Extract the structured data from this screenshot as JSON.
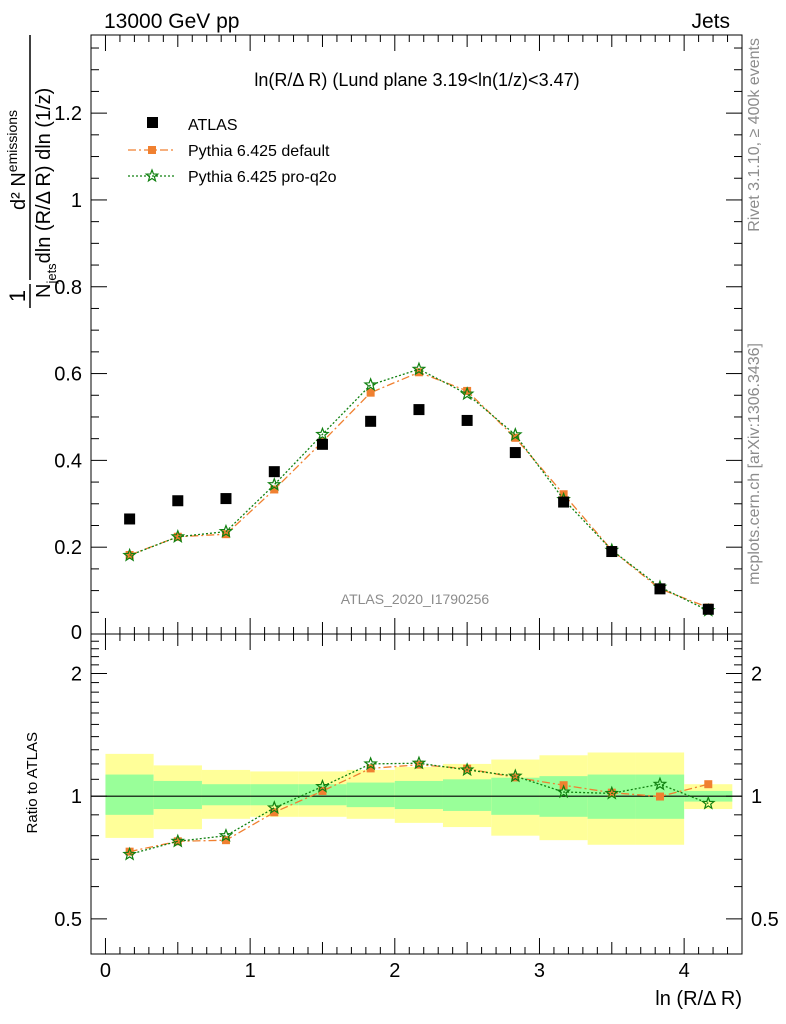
{
  "header": {
    "left": "13000 GeV pp",
    "right": "Jets"
  },
  "side_labels": {
    "rivet": "Rivet 3.1.10, ≥ 400k events",
    "mcplots": "mcplots.cern.ch [arXiv:1306.3436]"
  },
  "chart_data": [
    {
      "type": "scatter",
      "title": "ln(R/Δ R) (Lund plane 3.19<ln(1/z)<3.47)",
      "watermark": "ATLAS_2020_I1790256",
      "ylabel_parts": {
        "prefix": "1",
        "num": "d² N",
        "num_sub": "emissions",
        "den_a": "N",
        "den_a_sub": "jets",
        "den_b": "dln (R/Δ R) dln (1/z)"
      },
      "xlim": [
        -0.1,
        4.4
      ],
      "ylim": [
        0,
        1.38
      ],
      "yticks": [
        "0.2",
        "0.4",
        "0.6",
        "0.8",
        "1",
        "1.2"
      ],
      "ytick_zero": "0",
      "legend_position": "top-left",
      "series": [
        {
          "name": "ATLAS",
          "color": "#000000",
          "marker": "square",
          "x": [
            0.167,
            0.5,
            0.833,
            1.167,
            1.5,
            1.833,
            2.167,
            2.5,
            2.833,
            3.167,
            3.5,
            3.833,
            4.167
          ],
          "values": [
            0.265,
            0.307,
            0.312,
            0.374,
            0.437,
            0.49,
            0.517,
            0.492,
            0.418,
            0.304,
            0.19,
            0.104,
            0.057
          ]
        },
        {
          "name": "Pythia 6.425 default",
          "color": "#f08030",
          "marker": "circle",
          "line": "dashdot",
          "x": [
            0.167,
            0.5,
            0.833,
            1.167,
            1.5,
            1.833,
            2.167,
            2.5,
            2.833,
            3.167,
            3.5,
            3.833,
            4.167
          ],
          "values": [
            0.182,
            0.224,
            0.23,
            0.333,
            0.443,
            0.556,
            0.603,
            0.56,
            0.452,
            0.322,
            0.193,
            0.104,
            0.061
          ]
        },
        {
          "name": "Pythia 6.425 pro-q2o",
          "color": "#108010",
          "marker": "star",
          "line": "dotted",
          "x": [
            0.167,
            0.5,
            0.833,
            1.167,
            1.5,
            1.833,
            2.167,
            2.5,
            2.833,
            3.167,
            3.5,
            3.833,
            4.167
          ],
          "values": [
            0.181,
            0.224,
            0.236,
            0.344,
            0.46,
            0.574,
            0.61,
            0.553,
            0.459,
            0.31,
            0.193,
            0.108,
            0.054
          ]
        }
      ]
    },
    {
      "type": "scatter",
      "ylabel": "Ratio to ATLAS",
      "xlabel": "ln (R/Δ R)",
      "scale": "log",
      "ylim": [
        0.41,
        2.5
      ],
      "yticks": [
        "0.5",
        "1",
        "2"
      ],
      "xticks": [
        "0",
        "1",
        "2",
        "3",
        "4"
      ],
      "bands": {
        "x_edges": [
          0,
          0.333,
          0.667,
          1.0,
          1.333,
          1.667,
          2.0,
          2.333,
          2.667,
          3.0,
          3.333,
          3.667,
          4.0,
          4.333
        ],
        "outer_color": "#ffff99",
        "inner_color": "#99ff99",
        "outer_lo": [
          0.79,
          0.83,
          0.88,
          0.89,
          0.89,
          0.88,
          0.86,
          0.84,
          0.8,
          0.78,
          0.76,
          0.76,
          0.93
        ],
        "outer_hi": [
          1.27,
          1.19,
          1.16,
          1.15,
          1.15,
          1.16,
          1.18,
          1.2,
          1.23,
          1.26,
          1.28,
          1.28,
          1.07
        ],
        "inner_lo": [
          0.9,
          0.93,
          0.95,
          0.95,
          0.95,
          0.94,
          0.93,
          0.92,
          0.9,
          0.89,
          0.88,
          0.88,
          0.97
        ],
        "inner_hi": [
          1.13,
          1.09,
          1.07,
          1.07,
          1.07,
          1.08,
          1.09,
          1.1,
          1.11,
          1.12,
          1.13,
          1.13,
          1.03
        ]
      },
      "series": [
        {
          "name": "Pythia 6.425 default",
          "color": "#f08030",
          "marker": "circle",
          "line": "dashdot",
          "x": [
            0.167,
            0.5,
            0.833,
            1.167,
            1.5,
            1.833,
            2.167,
            2.5,
            2.833,
            3.167,
            3.5,
            3.833,
            4.167
          ],
          "values": [
            0.731,
            0.775,
            0.78,
            0.913,
            1.03,
            1.17,
            1.195,
            1.168,
            1.112,
            1.064,
            1.02,
            0.998,
            1.07
          ]
        },
        {
          "name": "Pythia 6.425 pro-q2o",
          "color": "#108010",
          "marker": "star",
          "line": "dotted",
          "x": [
            0.167,
            0.5,
            0.833,
            1.167,
            1.5,
            1.833,
            2.167,
            2.5,
            2.833,
            3.167,
            3.5,
            3.833,
            4.167
          ],
          "values": [
            0.72,
            0.775,
            0.8,
            0.936,
            1.056,
            1.2,
            1.205,
            1.16,
            1.12,
            1.024,
            1.016,
            1.07,
            0.96
          ]
        }
      ]
    }
  ]
}
